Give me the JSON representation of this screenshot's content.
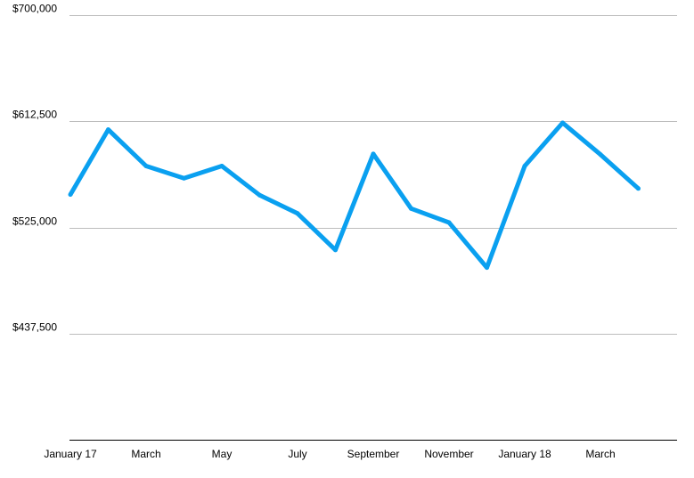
{
  "chart_data": {
    "type": "line",
    "title": "",
    "xlabel": "",
    "ylabel": "",
    "x_tick_labels": [
      "January 17",
      "March",
      "May",
      "July",
      "September",
      "November",
      "January 18",
      "March"
    ],
    "y_tick_labels": [
      "$700,000",
      "$612,500",
      "$525,000",
      "$437,500"
    ],
    "y_ticks": [
      700000,
      612500,
      525000,
      437500
    ],
    "ylim": [
      350000,
      700000
    ],
    "grid": true,
    "legend": "none",
    "series": [
      {
        "color": "#0aa0f0",
        "x": [
          "2017-01",
          "2017-02",
          "2017-03",
          "2017-04",
          "2017-05",
          "2017-06",
          "2017-07",
          "2017-08",
          "2017-09",
          "2017-10",
          "2017-11",
          "2017-12",
          "2018-01",
          "2018-02",
          "2018-03",
          "2018-04"
        ],
        "values": [
          552000,
          605500,
          575500,
          565500,
          575500,
          551500,
          536500,
          506500,
          585500,
          540500,
          529000,
          492000,
          575500,
          611000,
          585000,
          557000
        ]
      }
    ]
  }
}
